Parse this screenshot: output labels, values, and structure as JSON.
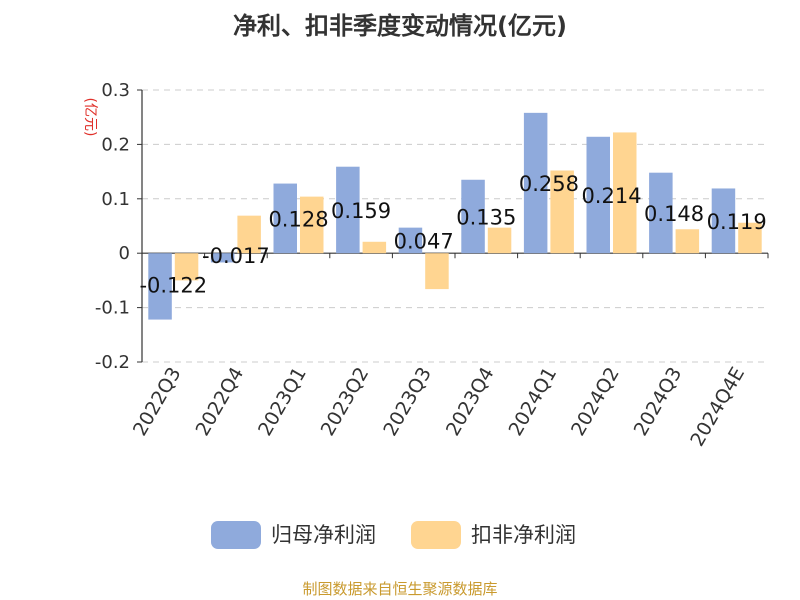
{
  "chart_data": {
    "type": "bar",
    "title": "净利、扣非季度变动情况(亿元)",
    "unit": "(亿元)",
    "categories": [
      "2022Q3",
      "2022Q4",
      "2023Q1",
      "2023Q2",
      "2023Q3",
      "2023Q4",
      "2024Q1",
      "2024Q2",
      "2024Q3",
      "2024Q4E"
    ],
    "series": [
      {
        "name": "归母净利润",
        "color": "#8faadc",
        "values": [
          -0.122,
          -0.017,
          0.128,
          0.159,
          0.047,
          0.135,
          0.258,
          0.214,
          0.148,
          0.119
        ],
        "labels": [
          "-0.122",
          "-0.017",
          "0.128",
          "0.159",
          "0.047",
          "0.135",
          "0.258",
          "0.214",
          "0.148",
          "0.119"
        ]
      },
      {
        "name": "扣非净利润",
        "color": "#ffd591",
        "values": [
          -0.05,
          0.069,
          0.104,
          0.021,
          -0.066,
          0.047,
          0.152,
          0.222,
          0.044,
          0.056
        ]
      }
    ],
    "ylim": [
      -0.2,
      0.3
    ],
    "yticks": [
      "0.3",
      "0.2",
      "0.1",
      "0",
      "-0.1",
      "-0.2"
    ],
    "grid": true,
    "legend_position": "bottom"
  },
  "source": "制图数据来自恒生聚源数据库"
}
